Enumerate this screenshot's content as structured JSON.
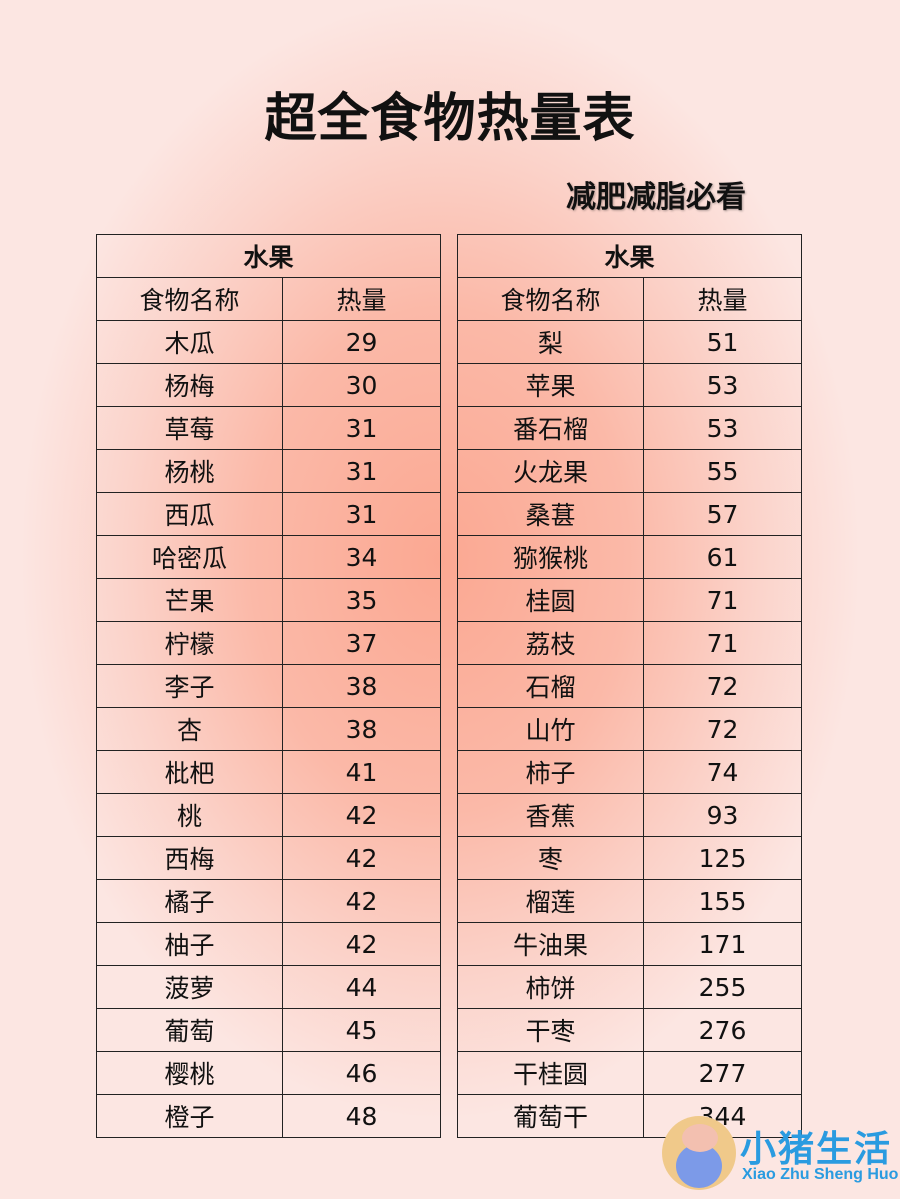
{
  "title": "超全食物热量表",
  "subtitle": "减肥减脂必看",
  "tables": [
    {
      "category": "水果",
      "headers": [
        "食物名称",
        "热量"
      ],
      "rows": [
        [
          "木瓜",
          "29"
        ],
        [
          "杨梅",
          "30"
        ],
        [
          "草莓",
          "31"
        ],
        [
          "杨桃",
          "31"
        ],
        [
          "西瓜",
          "31"
        ],
        [
          "哈密瓜",
          "34"
        ],
        [
          "芒果",
          "35"
        ],
        [
          "柠檬",
          "37"
        ],
        [
          "李子",
          "38"
        ],
        [
          "杏",
          "38"
        ],
        [
          "枇杷",
          "41"
        ],
        [
          "桃",
          "42"
        ],
        [
          "西梅",
          "42"
        ],
        [
          "橘子",
          "42"
        ],
        [
          "柚子",
          "42"
        ],
        [
          "菠萝",
          "44"
        ],
        [
          "葡萄",
          "45"
        ],
        [
          "樱桃",
          "46"
        ],
        [
          "橙子",
          "48"
        ]
      ]
    },
    {
      "category": "水果",
      "headers": [
        "食物名称",
        "热量"
      ],
      "rows": [
        [
          "梨",
          "51"
        ],
        [
          "苹果",
          "53"
        ],
        [
          "番石榴",
          "53"
        ],
        [
          "火龙果",
          "55"
        ],
        [
          "桑葚",
          "57"
        ],
        [
          "猕猴桃",
          "61"
        ],
        [
          "桂圆",
          "71"
        ],
        [
          "荔枝",
          "71"
        ],
        [
          "石榴",
          "72"
        ],
        [
          "山竹",
          "72"
        ],
        [
          "柿子",
          "74"
        ],
        [
          "香蕉",
          "93"
        ],
        [
          "枣",
          "125"
        ],
        [
          "榴莲",
          "155"
        ],
        [
          "牛油果",
          "171"
        ],
        [
          "柿饼",
          "255"
        ],
        [
          "干枣",
          "276"
        ],
        [
          "干桂圆",
          "277"
        ],
        [
          "葡萄干",
          "344"
        ]
      ]
    }
  ],
  "logo": {
    "name_cn": "小猪生活",
    "name_en": "Xiao Zhu Sheng Huo"
  },
  "colors": {
    "accent": "#2a9be0",
    "background": "#fbb9a8"
  }
}
